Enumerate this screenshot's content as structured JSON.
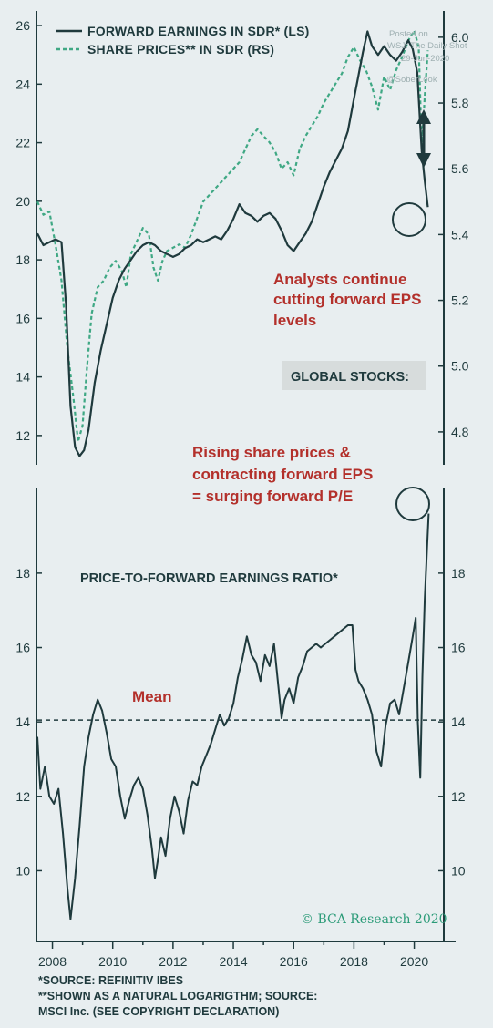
{
  "watermark": {
    "line1": "Posted on",
    "line2": "WSJ: The Daily Shot",
    "line3": "29-Jun-2020",
    "line4": "@SoberLook"
  },
  "credit": "© BCA Research 2020",
  "footnotes": [
    "*SOURCE: REFINITIV IBES",
    "**SHOWN AS A NATURAL LOGARIGTHM; SOURCE:",
    "MSCI Inc. (SEE COPYRIGHT DECLARATION)"
  ],
  "colors": {
    "earnings": "#1f3a3d",
    "prices": "#3fa884",
    "annotation": "#b3302b",
    "box": "#d7dcdc",
    "background": "#e8eef0"
  },
  "chart_data": [
    {
      "type": "line",
      "title": "GLOBAL STOCKS:",
      "annotation": [
        "Analysts continue",
        "cutting forward EPS",
        "levels"
      ],
      "left_ylim": [
        11,
        26.5
      ],
      "right_ylim": [
        4.7,
        6.08
      ],
      "left_ticks": [
        12,
        14,
        16,
        18,
        20,
        22,
        24,
        26
      ],
      "right_ticks": [
        "4.8",
        "5.0",
        "5.2",
        "5.4",
        "5.6",
        "5.8",
        "6.0"
      ],
      "right_tick_values": [
        4.8,
        5.0,
        5.2,
        5.4,
        5.6,
        5.8,
        6.0
      ],
      "series": [
        {
          "name": "FORWARD EARNINGS IN SDR* (LS)",
          "axis": "left",
          "style": "solid",
          "x": [
            2007.5,
            2007.7,
            2007.9,
            2008.1,
            2008.3,
            2008.45,
            2008.6,
            2008.75,
            2008.9,
            2009.05,
            2009.2,
            2009.4,
            2009.6,
            2009.8,
            2010.0,
            2010.2,
            2010.4,
            2010.6,
            2010.8,
            2011.0,
            2011.2,
            2011.4,
            2011.6,
            2011.8,
            2012.0,
            2012.2,
            2012.4,
            2012.6,
            2012.8,
            2013.0,
            2013.2,
            2013.4,
            2013.6,
            2013.8,
            2014.0,
            2014.2,
            2014.4,
            2014.6,
            2014.8,
            2015.0,
            2015.2,
            2015.4,
            2015.6,
            2015.8,
            2016.0,
            2016.2,
            2016.4,
            2016.6,
            2016.8,
            2017.0,
            2017.2,
            2017.4,
            2017.6,
            2017.8,
            2018.0,
            2018.15,
            2018.3,
            2018.45,
            2018.6,
            2018.8,
            2019.0,
            2019.2,
            2019.4,
            2019.6,
            2019.8,
            2019.95,
            2020.1,
            2020.25,
            2020.35,
            2020.45
          ],
          "values": [
            18.9,
            18.5,
            18.6,
            18.7,
            18.6,
            16.5,
            13.0,
            11.6,
            11.3,
            11.5,
            12.2,
            13.8,
            14.9,
            15.8,
            16.7,
            17.3,
            17.7,
            18.0,
            18.3,
            18.5,
            18.6,
            18.5,
            18.3,
            18.2,
            18.1,
            18.2,
            18.4,
            18.5,
            18.7,
            18.6,
            18.7,
            18.8,
            18.7,
            19.0,
            19.4,
            19.9,
            19.6,
            19.5,
            19.3,
            19.5,
            19.6,
            19.4,
            19.0,
            18.5,
            18.3,
            18.6,
            18.9,
            19.3,
            19.9,
            20.5,
            21.0,
            21.4,
            21.8,
            22.4,
            23.5,
            24.3,
            25.1,
            25.8,
            25.3,
            25.0,
            25.3,
            25.0,
            24.8,
            25.1,
            25.5,
            25.2,
            24.4,
            21.7,
            20.7,
            19.8
          ]
        },
        {
          "name": "SHARE PRICES** IN SDR (RS)",
          "axis": "right",
          "style": "dashed",
          "x": [
            2007.5,
            2007.7,
            2007.9,
            2008.1,
            2008.3,
            2008.5,
            2008.7,
            2008.85,
            2009.0,
            2009.15,
            2009.3,
            2009.5,
            2009.7,
            2009.9,
            2010.1,
            2010.3,
            2010.45,
            2010.6,
            2010.8,
            2011.0,
            2011.2,
            2011.35,
            2011.5,
            2011.65,
            2011.8,
            2012.0,
            2012.2,
            2012.4,
            2012.6,
            2012.8,
            2013.0,
            2013.2,
            2013.4,
            2013.6,
            2013.8,
            2014.0,
            2014.2,
            2014.4,
            2014.6,
            2014.8,
            2015.0,
            2015.2,
            2015.4,
            2015.6,
            2015.8,
            2016.0,
            2016.2,
            2016.4,
            2016.6,
            2016.8,
            2017.0,
            2017.2,
            2017.4,
            2017.6,
            2017.8,
            2018.0,
            2018.2,
            2018.4,
            2018.6,
            2018.8,
            2019.0,
            2019.2,
            2019.4,
            2019.6,
            2019.8,
            2020.0,
            2020.15,
            2020.25,
            2020.35,
            2020.45
          ],
          "values": [
            5.5,
            5.46,
            5.47,
            5.37,
            5.26,
            5.05,
            4.9,
            4.77,
            4.82,
            5.0,
            5.16,
            5.24,
            5.26,
            5.3,
            5.32,
            5.29,
            5.24,
            5.34,
            5.38,
            5.42,
            5.4,
            5.3,
            5.26,
            5.32,
            5.35,
            5.36,
            5.37,
            5.36,
            5.4,
            5.45,
            5.5,
            5.52,
            5.54,
            5.56,
            5.58,
            5.6,
            5.62,
            5.66,
            5.7,
            5.72,
            5.7,
            5.68,
            5.65,
            5.6,
            5.62,
            5.58,
            5.66,
            5.7,
            5.73,
            5.76,
            5.8,
            5.83,
            5.86,
            5.89,
            5.94,
            5.97,
            5.93,
            5.9,
            5.85,
            5.78,
            5.88,
            5.84,
            5.9,
            5.94,
            5.99,
            6.02,
            5.97,
            5.66,
            5.82,
            5.96
          ]
        }
      ]
    },
    {
      "type": "line",
      "title": "PRICE-TO-FORWARD EARNINGS RATIO*",
      "annotation": [
        "Rising share prices &",
        "contracting forward EPS",
        "= surging forward P/E"
      ],
      "mean_label": "Mean",
      "mean_value": 14.05,
      "ylim": [
        8.1,
        20.3
      ],
      "ticks": [
        10,
        12,
        14,
        16,
        18
      ],
      "series": [
        {
          "name": "PRICE-TO-FORWARD EARNINGS RATIO*",
          "style": "solid",
          "x": [
            2007.5,
            2007.6,
            2007.75,
            2007.9,
            2008.05,
            2008.2,
            2008.35,
            2008.5,
            2008.6,
            2008.75,
            2008.9,
            2009.05,
            2009.2,
            2009.35,
            2009.5,
            2009.65,
            2009.8,
            2009.95,
            2010.1,
            2010.25,
            2010.4,
            2010.55,
            2010.7,
            2010.85,
            2011.0,
            2011.15,
            2011.3,
            2011.4,
            2011.5,
            2011.6,
            2011.75,
            2011.9,
            2012.05,
            2012.2,
            2012.35,
            2012.5,
            2012.65,
            2012.8,
            2012.95,
            2013.1,
            2013.25,
            2013.4,
            2013.55,
            2013.7,
            2013.85,
            2014.0,
            2014.15,
            2014.3,
            2014.45,
            2014.6,
            2014.75,
            2014.9,
            2015.05,
            2015.2,
            2015.35,
            2015.5,
            2015.6,
            2015.7,
            2015.85,
            2016.0,
            2016.15,
            2016.3,
            2016.45,
            2016.6,
            2016.75,
            2016.9,
            2017.05,
            2017.2,
            2017.35,
            2017.5,
            2017.65,
            2017.8,
            2017.95,
            2018.05,
            2018.15,
            2018.3,
            2018.45,
            2018.6,
            2018.75,
            2018.9,
            2019.05,
            2019.2,
            2019.35,
            2019.5,
            2019.65,
            2019.8,
            2019.95,
            2020.05,
            2020.12,
            2020.2,
            2020.27,
            2020.35,
            2020.42,
            2020.48
          ],
          "values": [
            13.6,
            12.2,
            12.8,
            12.0,
            11.8,
            12.2,
            11.0,
            9.5,
            8.7,
            9.8,
            11.2,
            12.8,
            13.6,
            14.2,
            14.6,
            14.3,
            13.7,
            13.0,
            12.8,
            12.0,
            11.4,
            11.9,
            12.3,
            12.5,
            12.2,
            11.5,
            10.6,
            9.8,
            10.3,
            10.9,
            10.4,
            11.4,
            12.0,
            11.6,
            11.0,
            11.9,
            12.4,
            12.3,
            12.8,
            13.1,
            13.4,
            13.8,
            14.2,
            13.9,
            14.1,
            14.5,
            15.2,
            15.7,
            16.3,
            15.8,
            15.6,
            15.1,
            15.8,
            15.5,
            16.1,
            14.9,
            14.1,
            14.6,
            14.9,
            14.5,
            15.2,
            15.5,
            15.9,
            16.0,
            16.1,
            16.0,
            16.1,
            16.2,
            16.3,
            16.4,
            16.5,
            16.6,
            16.6,
            15.4,
            15.1,
            14.9,
            14.6,
            14.2,
            13.2,
            12.8,
            13.9,
            14.5,
            14.6,
            14.2,
            14.9,
            15.6,
            16.3,
            16.8,
            14.0,
            12.5,
            15.2,
            17.3,
            18.6,
            19.6
          ]
        }
      ]
    }
  ]
}
